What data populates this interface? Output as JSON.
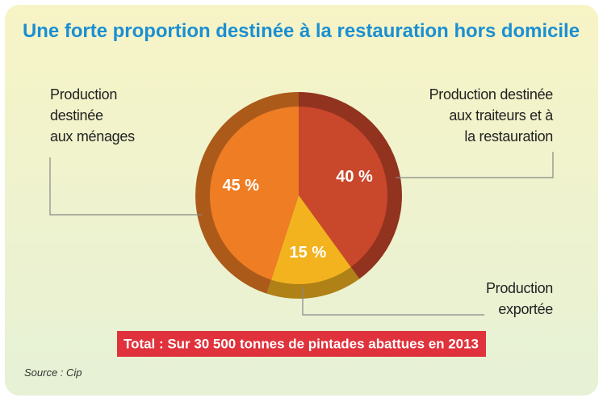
{
  "chart_data": {
    "type": "pie",
    "title": "Une forte proportion destinée à la restauration hors domicile",
    "categories": [
      "Production destinée\naux traiteurs et à\nla restauration",
      "Production\nexportée",
      "Production\ndestinée\naux ménages"
    ],
    "values": [
      40,
      15,
      45
    ],
    "value_labels": [
      "40 %",
      "15 %",
      "45 %"
    ],
    "colors": [
      "#c9472b",
      "#f3b31f",
      "#ef7d24"
    ],
    "total": "Total : Sur 30 500 tonnes de pintades abattues en 2013",
    "source": "Source : Cip"
  }
}
